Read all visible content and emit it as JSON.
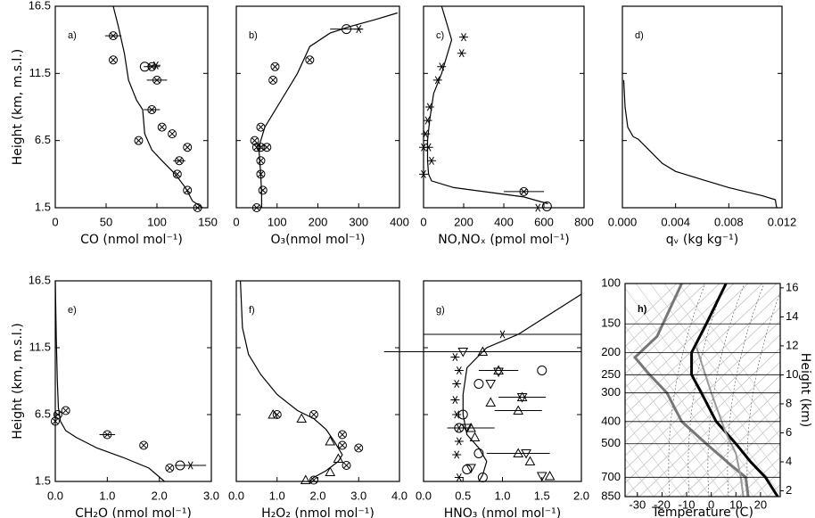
{
  "chart_data": [
    {
      "type": "profile",
      "panel_label": "a)",
      "xlabel": "CO (nmol mol⁻¹)",
      "ylabel": "Height (km, m.s.l.)",
      "ytick_labels": true,
      "xlim": [
        0,
        150
      ],
      "xticks": [
        0,
        50,
        100,
        150
      ],
      "ylim": [
        1.5,
        16.5
      ],
      "yticks": [
        1.5,
        6.5,
        11.5,
        16.5
      ],
      "series": [
        {
          "style": "line",
          "x": [
            57,
            62,
            68,
            72,
            80,
            86,
            88,
            95,
            105,
            118,
            128,
            135,
            145
          ],
          "y": [
            16.5,
            15,
            13,
            11,
            9.5,
            8.8,
            7,
            5.8,
            5,
            4,
            3,
            2,
            1.5
          ]
        },
        {
          "style": "marker",
          "marker": "circle-x",
          "x": [
            57,
            57,
            95,
            100,
            95,
            105,
            115,
            130,
            122,
            120,
            130,
            140,
            82
          ],
          "y": [
            14.3,
            12.5,
            12.0,
            11.0,
            8.8,
            7.5,
            7.0,
            6.0,
            5.0,
            4.0,
            2.8,
            1.5,
            6.5
          ],
          "xerr": [
            8,
            null,
            8,
            10,
            8,
            null,
            null,
            null,
            6,
            null,
            null,
            null,
            null
          ]
        },
        {
          "style": "marker",
          "marker": "circle",
          "x": [
            88
          ],
          "y": [
            12
          ]
        },
        {
          "style": "marker",
          "marker": "star",
          "x": [
            99
          ],
          "y": [
            12.1
          ]
        }
      ]
    },
    {
      "type": "profile",
      "panel_label": "b)",
      "xlabel": "O₃(nmol mol⁻¹)",
      "ytick_labels": false,
      "xlim": [
        0,
        400
      ],
      "xticks": [
        0,
        100,
        200,
        300,
        400
      ],
      "ylim": [
        1.5,
        16.5
      ],
      "yticks": [
        1.5,
        6.5,
        11.5,
        16.5
      ],
      "series": [
        {
          "style": "line",
          "x": [
            395,
            340,
            280,
            230,
            180,
            150,
            110,
            70,
            55,
            60,
            62,
            62
          ],
          "y": [
            16,
            15.5,
            15,
            14.5,
            13.5,
            11.5,
            9.5,
            7.5,
            6,
            4,
            2.5,
            1.5
          ]
        },
        {
          "style": "marker",
          "marker": "circle-x",
          "x": [
            50,
            65,
            60,
            60,
            60,
            50,
            75,
            45,
            60,
            90,
            95,
            180
          ],
          "y": [
            1.5,
            2.8,
            4,
            5,
            6,
            6,
            6,
            6.5,
            7.5,
            11,
            12,
            12.5
          ]
        },
        {
          "style": "marker",
          "marker": "circle",
          "x": [
            270
          ],
          "y": [
            14.8
          ],
          "xerr": [
            40
          ]
        },
        {
          "style": "marker",
          "marker": "star",
          "x": [
            300
          ],
          "y": [
            14.8
          ]
        }
      ]
    },
    {
      "type": "profile",
      "panel_label": "c)",
      "xlabel": "NO,NOₓ (pmol mol⁻¹)",
      "ytick_labels": false,
      "xlim": [
        0,
        800
      ],
      "xticks": [
        0,
        200,
        400,
        600,
        800
      ],
      "ylim": [
        1.5,
        16.5
      ],
      "yticks": [
        1.5,
        6.5,
        11.5,
        16.5
      ],
      "series": [
        {
          "style": "line",
          "x": [
            90,
            110,
            140,
            90,
            50,
            30,
            20,
            20,
            25,
            40,
            150,
            500,
            620
          ],
          "y": [
            16.5,
            15.5,
            14,
            11.5,
            10,
            8,
            6.5,
            5,
            4,
            3.5,
            3,
            2.3,
            1.8
          ]
        },
        {
          "style": "marker",
          "marker": "star",
          "x": [
            200,
            190,
            90,
            70,
            30,
            20,
            10,
            0,
            25,
            40,
            0,
            570
          ],
          "y": [
            14.2,
            13,
            12,
            11,
            9,
            8,
            7,
            6,
            6,
            5,
            4,
            1.5
          ]
        },
        {
          "style": "marker",
          "marker": "circle-x",
          "x": [
            500
          ],
          "y": [
            2.7
          ],
          "xerr": [
            100
          ]
        },
        {
          "style": "marker",
          "marker": "circle",
          "x": [
            615
          ],
          "y": [
            1.6
          ]
        }
      ]
    },
    {
      "type": "profile",
      "panel_label": "d)",
      "xlabel": "qᵥ (kg kg⁻¹)",
      "ytick_labels": false,
      "xlim": [
        0,
        0.012
      ],
      "xticks": [
        {
          "value": 0,
          "label": "0.000"
        },
        {
          "value": 0.004,
          "label": "0.004"
        },
        {
          "value": 0.008,
          "label": "0.008"
        },
        {
          "value": 0.012,
          "label": "0.012"
        }
      ],
      "ylim": [
        1.5,
        16.5
      ],
      "yticks": [
        1.5,
        6.5,
        11.5,
        16.5
      ],
      "series": [
        {
          "style": "line",
          "x": [
            0.0001,
            0.0002,
            0.0004,
            0.0008,
            0.0012,
            0.002,
            0.003,
            0.004,
            0.006,
            0.008,
            0.0105,
            0.0115,
            0.0116
          ],
          "y": [
            11,
            9,
            7.5,
            6.8,
            6.6,
            5.8,
            4.8,
            4.2,
            3.6,
            3,
            2.4,
            2.1,
            1.5
          ]
        }
      ]
    },
    {
      "type": "profile",
      "panel_label": "e)",
      "xlabel": "CH₂O (nmol mol⁻¹)",
      "ylabel": "Height (km, m.s.l.)",
      "ytick_labels": true,
      "xlim": [
        0,
        3
      ],
      "xticks": [
        {
          "value": 0,
          "label": "0.0"
        },
        {
          "value": 1,
          "label": "1.0"
        },
        {
          "value": 2,
          "label": "2.0"
        },
        {
          "value": 3,
          "label": "3.0"
        }
      ],
      "ylim": [
        1.5,
        16.5
      ],
      "yticks": [
        1.5,
        6.5,
        11.5,
        16.5
      ],
      "series": [
        {
          "style": "line",
          "x": [
            0,
            0.02,
            0.04,
            0.06,
            0.1,
            0.2,
            0.4,
            0.8,
            1.3,
            1.8,
            2.1
          ],
          "y": [
            16.5,
            12,
            9,
            7,
            6,
            5.3,
            4.8,
            4,
            3.3,
            2.5,
            1.5
          ]
        },
        {
          "style": "marker",
          "marker": "circle-x",
          "x": [
            0,
            0.05,
            0.2,
            1.0,
            1.7,
            2.2
          ],
          "y": [
            6,
            6.5,
            6.8,
            5,
            4.2,
            2.5
          ],
          "xerr": [
            null,
            null,
            null,
            0.15,
            null,
            null
          ]
        },
        {
          "style": "marker",
          "marker": "circle",
          "x": [
            2.4
          ],
          "y": [
            2.7
          ]
        },
        {
          "style": "marker",
          "marker": "star",
          "x": [
            2.6
          ],
          "y": [
            2.7
          ],
          "xerr": [
            0.3
          ]
        }
      ]
    },
    {
      "type": "profile",
      "panel_label": "f)",
      "xlabel": "H₂O₂ (nmol mol⁻¹)",
      "ytick_labels": false,
      "xlim": [
        0,
        4
      ],
      "xticks": [
        {
          "value": 0,
          "label": "0.0"
        },
        {
          "value": 1,
          "label": "1.0"
        },
        {
          "value": 2,
          "label": "2.0"
        },
        {
          "value": 3,
          "label": "3.0"
        },
        {
          "value": 4,
          "label": "4.0"
        }
      ],
      "ylim": [
        1.5,
        16.5
      ],
      "yticks": [
        1.5,
        6.5,
        11.5,
        16.5
      ],
      "series": [
        {
          "style": "line",
          "x": [
            0.1,
            0.15,
            0.3,
            0.6,
            1.0,
            1.5,
            1.9,
            2.2,
            2.4,
            2.6,
            2.5,
            2.2,
            1.9,
            1.8
          ],
          "y": [
            16.5,
            13,
            11,
            9.5,
            8,
            6.8,
            6.2,
            5.4,
            4.5,
            3.5,
            3,
            2.3,
            1.8,
            1.5
          ]
        },
        {
          "style": "marker",
          "marker": "circle-x",
          "x": [
            1.0,
            1.9,
            2.6,
            2.6,
            3.0,
            2.7,
            1.9
          ],
          "y": [
            6.5,
            6.5,
            5,
            4.2,
            4,
            2.7,
            1.6
          ]
        },
        {
          "style": "marker",
          "marker": "triangle",
          "x": [
            0.9,
            1.6,
            2.3,
            2.5,
            2.3,
            1.7
          ],
          "y": [
            6.5,
            6.2,
            4.5,
            3.2,
            2.2,
            1.6
          ]
        }
      ]
    },
    {
      "type": "profile",
      "panel_label": "g)",
      "xlabel": "HNO₃ (nmol mol⁻¹)",
      "ytick_labels": false,
      "xlim": [
        0,
        2
      ],
      "xticks": [
        {
          "value": 0,
          "label": "0.0"
        },
        {
          "value": 0.5,
          "label": "0.5"
        },
        {
          "value": 1,
          "label": "1.0"
        },
        {
          "value": 1.5,
          "label": "1.5"
        },
        {
          "value": 2,
          "label": "2.0"
        }
      ],
      "ylim": [
        1.5,
        16.5
      ],
      "yticks": [
        1.5,
        6.5,
        11.5,
        16.5
      ],
      "series": [
        {
          "style": "line",
          "x": [
            2.0,
            1.6,
            1.2,
            0.8,
            0.55,
            0.5,
            0.5,
            0.55,
            0.7,
            0.8,
            0.75,
            0.7
          ],
          "y": [
            15.5,
            14,
            12.5,
            11.5,
            10,
            8,
            6.5,
            5,
            4,
            3,
            2,
            1.5
          ]
        },
        {
          "style": "marker",
          "marker": "star",
          "x": [
            1.0,
            0.4,
            0.45,
            0.42,
            0.4,
            0.42,
            0.45,
            0.45,
            0.42,
            0.45
          ],
          "y": [
            12.5,
            10.8,
            9.8,
            8.8,
            7.6,
            6.5,
            5.5,
            4.5,
            3.5,
            1.8
          ],
          "xerr": [
            1.0,
            null,
            null,
            null,
            null,
            null,
            null,
            null,
            null,
            null
          ]
        },
        {
          "style": "marker",
          "marker": "triangle",
          "x": [
            0.75,
            0.95,
            1.25,
            0.85,
            1.2,
            0.6,
            0.65,
            1.2,
            1.35,
            1.6
          ],
          "y": [
            11.2,
            9.8,
            7.8,
            7.4,
            6.8,
            5.5,
            4.8,
            3.6,
            3.0,
            1.9
          ],
          "xerr": [
            1.25,
            0.25,
            0.3,
            null,
            0.3,
            0.3,
            null,
            0.4,
            null,
            null
          ]
        },
        {
          "style": "marker",
          "marker": "inv-triangle",
          "x": [
            0.5,
            0.95,
            0.85,
            1.25,
            0.55,
            1.3,
            0.6,
            1.5
          ],
          "y": [
            11.2,
            9.7,
            8.8,
            7.8,
            5.5,
            3.6,
            2.5,
            1.9
          ]
        },
        {
          "style": "marker",
          "marker": "circle",
          "x": [
            1.5,
            0.7,
            0.5,
            0.45,
            0.7,
            0.55,
            0.75
          ],
          "y": [
            9.8,
            8.8,
            6.5,
            5.5,
            3.6,
            2.4,
            1.8
          ]
        }
      ]
    },
    {
      "type": "skew-t",
      "panel_label": "h)",
      "xlabel": "Temperature (C)",
      "y2label": "Height (km)",
      "ytick_labels": true,
      "xlim": [
        -35,
        28
      ],
      "xticks": [
        -30,
        -20,
        -10,
        0,
        10,
        20
      ],
      "ylim": [
        850,
        100
      ],
      "ylog": true,
      "yticks": [
        100,
        150,
        200,
        250,
        300,
        400,
        500,
        700,
        850
      ],
      "grid": true,
      "y2lim": [
        1.6,
        16.3
      ],
      "y2ticks": [
        2,
        4,
        6,
        8,
        10,
        12,
        14,
        16
      ],
      "series": [
        {
          "style": "line",
          "color": "#000000",
          "width": 3,
          "x": [
            6,
            -2,
            -8,
            -8,
            -4,
            2,
            10,
            16,
            22,
            27
          ],
          "y": [
            100,
            150,
            200,
            250,
            300,
            400,
            500,
            600,
            700,
            850
          ]
        },
        {
          "style": "line",
          "color": "#777777",
          "width": 3,
          "x": [
            -12,
            -22,
            -31,
            -25,
            -18,
            -12,
            -2,
            8,
            14,
            15
          ],
          "y": [
            100,
            170,
            210,
            250,
            300,
            400,
            500,
            620,
            700,
            850
          ]
        },
        {
          "style": "line",
          "color": "#999999",
          "width": 2,
          "x": [
            -6,
            0,
            6,
            10,
            12,
            13
          ],
          "y": [
            190,
            300,
            450,
            550,
            700,
            850
          ]
        }
      ]
    }
  ]
}
